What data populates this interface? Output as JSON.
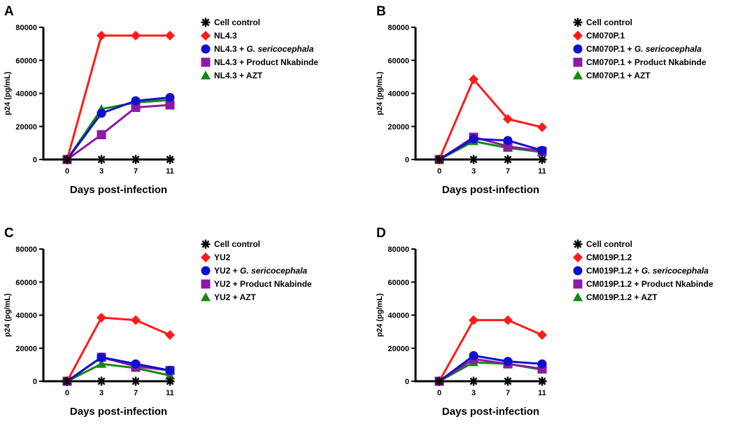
{
  "chart_data": [
    {
      "panel": "A",
      "type": "line",
      "xlabel": "Days post-infection",
      "ylabel": "p24 (pg/mL)",
      "categories": [
        "0",
        "3",
        "7",
        "11"
      ],
      "yticks": [
        "0",
        "20000",
        "40000",
        "60000",
        "80000"
      ],
      "ylim": [
        0,
        80000
      ],
      "series": [
        {
          "prefix": "",
          "name": "Cell control",
          "suffix": "",
          "italic": "",
          "color": "#000000",
          "marker": "asterisk",
          "values": [
            0,
            0,
            0,
            0
          ]
        },
        {
          "prefix": "",
          "name": "NL4.3",
          "suffix": "",
          "italic": "",
          "color": "#ff1a1a",
          "marker": "diamond",
          "values": [
            0,
            75000,
            75000,
            75000
          ]
        },
        {
          "prefix": "",
          "name": "NL4.3 + ",
          "suffix": "",
          "italic": "G. sericocephala",
          "color": "#1010cc",
          "marker": "circle",
          "values": [
            0,
            28000,
            35500,
            37500
          ]
        },
        {
          "prefix": "",
          "name": "NL4.3 + Product Nkabinde",
          "suffix": "",
          "italic": "",
          "color": "#8b1aa8",
          "marker": "square",
          "values": [
            0,
            15000,
            31500,
            33000
          ]
        },
        {
          "prefix": "",
          "name": "NL4.3 + AZT",
          "suffix": "",
          "italic": "",
          "color": "#108a10",
          "marker": "triangle",
          "values": [
            0,
            30500,
            34500,
            36000
          ]
        }
      ]
    },
    {
      "panel": "B",
      "type": "line",
      "xlabel": "Days post-infection",
      "ylabel": "p24 (pg/mL)",
      "categories": [
        "0",
        "3",
        "7",
        "11"
      ],
      "yticks": [
        "0",
        "20000",
        "40000",
        "60000",
        "80000"
      ],
      "ylim": [
        0,
        80000
      ],
      "series": [
        {
          "prefix": "",
          "name": "Cell control",
          "suffix": "",
          "italic": "",
          "color": "#000000",
          "marker": "asterisk",
          "values": [
            0,
            0,
            0,
            0
          ]
        },
        {
          "prefix": "",
          "name": "CM070P.1",
          "suffix": "",
          "italic": "",
          "color": "#ff1a1a",
          "marker": "diamond",
          "values": [
            0,
            48500,
            24500,
            19500
          ]
        },
        {
          "prefix": "",
          "name": "CM070P.1 + ",
          "suffix": "",
          "italic": "G. sericocephala",
          "color": "#1010cc",
          "marker": "circle",
          "values": [
            0,
            12500,
            11500,
            5500
          ]
        },
        {
          "prefix": "",
          "name": "CM070P.1 + Product Nkabinde",
          "suffix": "",
          "italic": "",
          "color": "#8b1aa8",
          "marker": "square",
          "values": [
            0,
            13500,
            8000,
            5000
          ]
        },
        {
          "prefix": "",
          "name": "CM070P.1 + AZT",
          "suffix": "",
          "italic": "",
          "color": "#108a10",
          "marker": "triangle",
          "values": [
            0,
            11000,
            7000,
            4500
          ]
        }
      ]
    },
    {
      "panel": "C",
      "type": "line",
      "xlabel": "Days post-infection",
      "ylabel": "p24 (pg/mL)",
      "categories": [
        "0",
        "3",
        "7",
        "11"
      ],
      "yticks": [
        "0",
        "20000",
        "40000",
        "60000",
        "80000"
      ],
      "ylim": [
        0,
        80000
      ],
      "series": [
        {
          "prefix": "",
          "name": "Cell control",
          "suffix": "",
          "italic": "",
          "color": "#000000",
          "marker": "asterisk",
          "values": [
            0,
            0,
            0,
            0
          ]
        },
        {
          "prefix": "",
          "name": "YU2",
          "suffix": "",
          "italic": "",
          "color": "#ff1a1a",
          "marker": "diamond",
          "values": [
            0,
            38500,
            37000,
            28000
          ]
        },
        {
          "prefix": "",
          "name": "YU2 + ",
          "suffix": "",
          "italic": "G. sericocephala",
          "color": "#1010cc",
          "marker": "circle",
          "values": [
            0,
            14500,
            10500,
            6500
          ]
        },
        {
          "prefix": "",
          "name": "YU2 + Product Nkabinde",
          "suffix": "",
          "italic": "",
          "color": "#8b1aa8",
          "marker": "square",
          "values": [
            0,
            14500,
            9000,
            6500
          ]
        },
        {
          "prefix": "",
          "name": "YU2 + AZT",
          "suffix": "",
          "italic": "",
          "color": "#108a10",
          "marker": "triangle",
          "values": [
            0,
            10500,
            8000,
            3500
          ]
        }
      ]
    },
    {
      "panel": "D",
      "type": "line",
      "xlabel": "Days post-infection",
      "ylabel": "p24 (pg/mL)",
      "categories": [
        "0",
        "3",
        "7",
        "11"
      ],
      "yticks": [
        "0",
        "20000",
        "40000",
        "60000",
        "80000"
      ],
      "ylim": [
        0,
        80000
      ],
      "series": [
        {
          "prefix": "",
          "name": "Cell control",
          "suffix": "",
          "italic": "",
          "color": "#000000",
          "marker": "asterisk",
          "values": [
            0,
            0,
            0,
            0
          ]
        },
        {
          "prefix": "",
          "name": "CM019P.1.2",
          "suffix": "",
          "italic": "",
          "color": "#ff1a1a",
          "marker": "diamond",
          "values": [
            0,
            37000,
            37000,
            28000
          ]
        },
        {
          "prefix": "",
          "name": "CM019P.1.2 + ",
          "suffix": "",
          "italic": "G. sericocephala",
          "color": "#1010cc",
          "marker": "circle",
          "values": [
            0,
            15500,
            12000,
            10500
          ]
        },
        {
          "prefix": "",
          "name": "CM019P.1.2 + Product Nkabinde",
          "suffix": "",
          "italic": "",
          "color": "#8b1aa8",
          "marker": "square",
          "values": [
            0,
            13500,
            10500,
            7500
          ]
        },
        {
          "prefix": "",
          "name": "CM019P.1.2 + AZT",
          "suffix": "",
          "italic": "",
          "color": "#108a10",
          "marker": "triangle",
          "values": [
            0,
            11500,
            10500,
            7000
          ]
        }
      ]
    }
  ]
}
